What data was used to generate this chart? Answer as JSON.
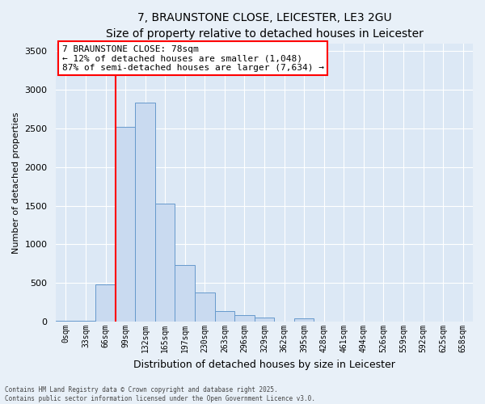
{
  "title": "7, BRAUNSTONE CLOSE, LEICESTER, LE3 2GU",
  "subtitle": "Size of property relative to detached houses in Leicester",
  "xlabel": "Distribution of detached houses by size in Leicester",
  "ylabel": "Number of detached properties",
  "bar_labels": [
    "0sqm",
    "33sqm",
    "66sqm",
    "99sqm",
    "132sqm",
    "165sqm",
    "197sqm",
    "230sqm",
    "263sqm",
    "296sqm",
    "329sqm",
    "362sqm",
    "395sqm",
    "428sqm",
    "461sqm",
    "494sqm",
    "526sqm",
    "559sqm",
    "592sqm",
    "625sqm",
    "658sqm"
  ],
  "bar_values": [
    10,
    15,
    480,
    2520,
    2830,
    1530,
    735,
    380,
    140,
    80,
    55,
    5,
    40,
    5,
    5,
    0,
    0,
    0,
    0,
    0,
    0
  ],
  "bar_color": "#c9daf0",
  "bar_edge_color": "#6699cc",
  "ylim": [
    0,
    3600
  ],
  "yticks": [
    0,
    500,
    1000,
    1500,
    2000,
    2500,
    3000,
    3500
  ],
  "red_line_x": 2.5,
  "annotation_text": "7 BRAUNSTONE CLOSE: 78sqm\n← 12% of detached houses are smaller (1,048)\n87% of semi-detached houses are larger (7,634) →",
  "footer_line1": "Contains HM Land Registry data © Crown copyright and database right 2025.",
  "footer_line2": "Contains public sector information licensed under the Open Government Licence v3.0.",
  "bg_color": "#e8f0f8",
  "plot_bg_color": "#dce8f5",
  "grid_color": "#ffffff",
  "title_fontsize": 10,
  "subtitle_fontsize": 9,
  "ylabel_fontsize": 8,
  "xlabel_fontsize": 9,
  "tick_fontsize": 7,
  "annotation_fontsize": 8,
  "footer_fontsize": 5.5
}
